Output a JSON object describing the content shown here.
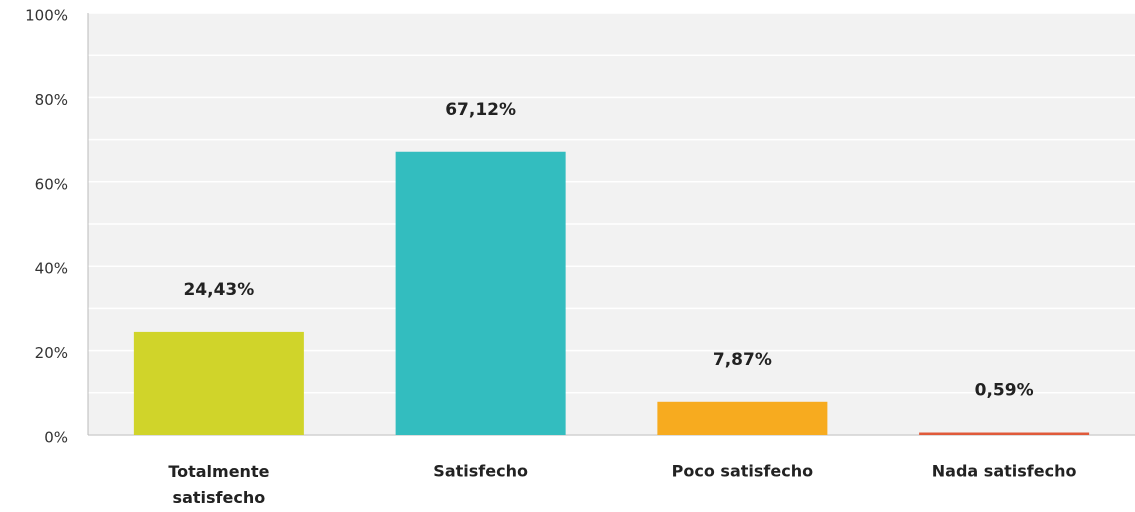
{
  "chart_data": {
    "type": "bar",
    "categories": [
      "Totalmente satisfecho",
      "Satisfecho",
      "Poco satisfecho",
      "Nada satisfecho"
    ],
    "values": [
      24.43,
      67.12,
      7.87,
      0.59
    ],
    "value_labels": [
      "24,43%",
      "67,12%",
      "7,87%",
      "0,59%"
    ],
    "colors": [
      "#d0d42a",
      "#33bdbf",
      "#f7ab1f",
      "#e05a3a"
    ],
    "ylim": [
      0,
      100
    ],
    "yticks": [
      {
        "value": 0,
        "label": "0%"
      },
      {
        "value": 20,
        "label": "20%"
      },
      {
        "value": 40,
        "label": "40%"
      },
      {
        "value": 60,
        "label": "60%"
      },
      {
        "value": 80,
        "label": "80%"
      },
      {
        "value": 100,
        "label": "100%"
      }
    ],
    "minor_yticks": [
      10,
      30,
      50,
      70,
      90
    ],
    "grid": true
  }
}
